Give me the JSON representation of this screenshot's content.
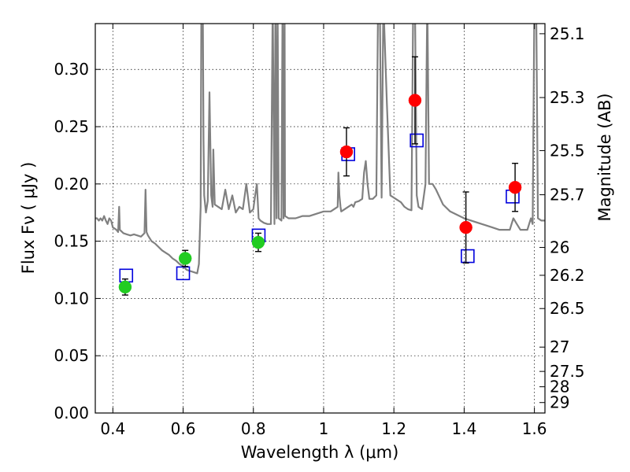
{
  "chart_data": {
    "type": "scatter",
    "xlabel": "Wavelength  λ (μm)",
    "ylabel": "Flux  Fν  ( μJy )",
    "y2label": "Magnitude (AB)",
    "xlim": [
      0.35,
      1.63
    ],
    "ylim": [
      0.0,
      0.34
    ],
    "grid": true,
    "x_ticks": [
      {
        "value": 0.4,
        "label": "0.4"
      },
      {
        "value": 0.6,
        "label": "0.6"
      },
      {
        "value": 0.8,
        "label": "0.8"
      },
      {
        "value": 1.0,
        "label": "1"
      },
      {
        "value": 1.2,
        "label": "1.2"
      },
      {
        "value": 1.4,
        "label": "1.4"
      },
      {
        "value": 1.6,
        "label": "1.6"
      }
    ],
    "y_ticks": [
      {
        "value": 0.0,
        "label": "0.00"
      },
      {
        "value": 0.05,
        "label": "0.05"
      },
      {
        "value": 0.1,
        "label": "0.10"
      },
      {
        "value": 0.15,
        "label": "0.15"
      },
      {
        "value": 0.2,
        "label": "0.20"
      },
      {
        "value": 0.25,
        "label": "0.25"
      },
      {
        "value": 0.3,
        "label": "0.30"
      }
    ],
    "y2_ticks": [
      {
        "mag": 25.1,
        "label": "25.1"
      },
      {
        "mag": 25.3,
        "label": "25.3"
      },
      {
        "mag": 25.5,
        "label": "25.5"
      },
      {
        "mag": 25.7,
        "label": "25.7"
      },
      {
        "mag": 26.0,
        "label": "26"
      },
      {
        "mag": 26.2,
        "label": "26.2"
      },
      {
        "mag": 26.5,
        "label": "26.5"
      },
      {
        "mag": 27.0,
        "label": "27"
      },
      {
        "mag": 27.5,
        "label": "27.5"
      },
      {
        "mag": 28.0,
        "label": "28"
      },
      {
        "mag": 29.0,
        "label": "29"
      }
    ],
    "series": [
      {
        "marker": "circle",
        "color": "#22cc22",
        "x": [
          0.435,
          0.606,
          0.814
        ],
        "y": [
          0.11,
          0.135,
          0.149
        ],
        "yerr": [
          0.007,
          0.007,
          0.008
        ]
      },
      {
        "marker": "circle",
        "color": "#ff0000",
        "x": [
          1.065,
          1.26,
          1.405,
          1.545
        ],
        "y": [
          0.228,
          0.273,
          0.162,
          0.197
        ],
        "yerr": [
          0.021,
          0.038,
          0.031,
          0.021
        ]
      },
      {
        "marker": "open-square",
        "color": "#0000dd",
        "x": [
          0.438,
          0.6,
          0.815,
          1.07,
          1.265,
          1.41,
          1.538
        ],
        "y": [
          0.12,
          0.122,
          0.155,
          0.226,
          0.238,
          0.137,
          0.189
        ]
      },
      {
        "type": "line",
        "color": "#808080",
        "x": [
          0.35,
          0.355,
          0.36,
          0.365,
          0.37,
          0.375,
          0.38,
          0.385,
          0.39,
          0.395,
          0.4,
          0.41,
          0.415,
          0.418,
          0.42,
          0.43,
          0.44,
          0.45,
          0.46,
          0.47,
          0.48,
          0.49,
          0.493,
          0.496,
          0.5,
          0.51,
          0.52,
          0.53,
          0.54,
          0.55,
          0.56,
          0.57,
          0.58,
          0.59,
          0.6,
          0.61,
          0.62,
          0.63,
          0.64,
          0.645,
          0.65,
          0.652,
          0.654,
          0.656,
          0.658,
          0.66,
          0.665,
          0.67,
          0.675,
          0.68,
          0.684,
          0.686,
          0.69,
          0.7,
          0.71,
          0.72,
          0.73,
          0.74,
          0.75,
          0.76,
          0.77,
          0.78,
          0.79,
          0.8,
          0.805,
          0.81,
          0.815,
          0.82,
          0.83,
          0.84,
          0.85,
          0.855,
          0.86,
          0.863,
          0.866,
          0.869,
          0.872,
          0.88,
          0.883,
          0.886,
          0.889,
          0.89,
          0.9,
          0.92,
          0.94,
          0.96,
          0.98,
          1.0,
          1.02,
          1.04,
          1.042,
          1.045,
          1.048,
          1.05,
          1.06,
          1.07,
          1.08,
          1.085,
          1.09,
          1.1,
          1.11,
          1.115,
          1.12,
          1.125,
          1.13,
          1.14,
          1.15,
          1.155,
          1.16,
          1.165,
          1.17,
          1.18,
          1.19,
          1.2,
          1.21,
          1.22,
          1.23,
          1.24,
          1.25,
          1.255,
          1.26,
          1.265,
          1.27,
          1.28,
          1.29,
          1.295,
          1.3,
          1.31,
          1.32,
          1.34,
          1.36,
          1.38,
          1.4,
          1.42,
          1.44,
          1.46,
          1.48,
          1.5,
          1.52,
          1.53,
          1.535,
          1.54,
          1.55,
          1.56,
          1.57,
          1.58,
          1.585,
          1.59,
          1.595,
          1.6,
          1.605,
          1.61,
          1.62,
          1.63
        ],
        "y": [
          0.17,
          0.17,
          0.168,
          0.17,
          0.168,
          0.172,
          0.168,
          0.165,
          0.17,
          0.168,
          0.162,
          0.16,
          0.158,
          0.18,
          0.16,
          0.157,
          0.156,
          0.155,
          0.156,
          0.155,
          0.154,
          0.157,
          0.195,
          0.158,
          0.155,
          0.15,
          0.148,
          0.145,
          0.142,
          0.14,
          0.138,
          0.135,
          0.133,
          0.13,
          0.128,
          0.125,
          0.124,
          0.123,
          0.122,
          0.13,
          0.18,
          0.36,
          0.36,
          0.36,
          0.24,
          0.19,
          0.175,
          0.185,
          0.28,
          0.19,
          0.18,
          0.23,
          0.182,
          0.18,
          0.178,
          0.195,
          0.178,
          0.19,
          0.175,
          0.18,
          0.178,
          0.2,
          0.175,
          0.178,
          0.19,
          0.2,
          0.17,
          0.168,
          0.166,
          0.165,
          0.165,
          0.36,
          0.165,
          0.36,
          0.17,
          0.36,
          0.17,
          0.168,
          0.36,
          0.17,
          0.36,
          0.172,
          0.17,
          0.17,
          0.172,
          0.172,
          0.174,
          0.176,
          0.176,
          0.18,
          0.21,
          0.19,
          0.18,
          0.176,
          0.178,
          0.18,
          0.182,
          0.18,
          0.184,
          0.185,
          0.187,
          0.21,
          0.22,
          0.2,
          0.187,
          0.187,
          0.19,
          0.36,
          0.36,
          0.188,
          0.36,
          0.27,
          0.19,
          0.188,
          0.186,
          0.184,
          0.18,
          0.178,
          0.177,
          0.36,
          0.36,
          0.19,
          0.18,
          0.178,
          0.2,
          0.365,
          0.2,
          0.2,
          0.195,
          0.182,
          0.176,
          0.173,
          0.17,
          0.168,
          0.166,
          0.164,
          0.162,
          0.16,
          0.16,
          0.16,
          0.165,
          0.17,
          0.165,
          0.16,
          0.16,
          0.16,
          0.165,
          0.17,
          0.165,
          0.36,
          0.365,
          0.17,
          0.168,
          0.168
        ]
      }
    ]
  }
}
